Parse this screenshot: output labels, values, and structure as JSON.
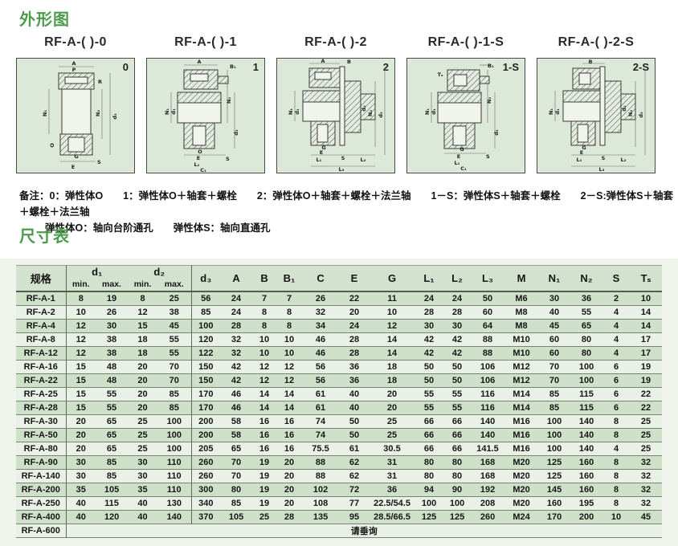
{
  "page": {
    "section1_title": "外形图",
    "section2_title": "尺寸表"
  },
  "diagrams": [
    {
      "title": "RF-A-( )-0",
      "corner": "0",
      "dims": [
        "A",
        "P",
        "R",
        "N₁",
        "N₂",
        "d₃",
        "O",
        "G",
        "E",
        "S"
      ]
    },
    {
      "title": "RF-A-( )-1",
      "corner": "1",
      "dims": [
        "A",
        "B₁",
        "N₁",
        "d₁",
        "N₂",
        "d₃",
        "O",
        "E",
        "L₁",
        "C₁",
        "S"
      ]
    },
    {
      "title": "RF-A-( )-2",
      "corner": "2",
      "dims": [
        "A",
        "B",
        "N₁",
        "d₁",
        "d₂",
        "N₂",
        "d₃",
        "G",
        "E",
        "L₁",
        "S",
        "L₂",
        "L₃"
      ]
    },
    {
      "title": "RF-A-( )-1-S",
      "corner": "1-S",
      "dims": [
        "B₁",
        "Tₛ",
        "N₁",
        "d₁",
        "N₂",
        "d₃",
        "G",
        "E",
        "L₁",
        "C₁",
        "S"
      ]
    },
    {
      "title": "RF-A-( )-2-S",
      "corner": "2-S",
      "dims": [
        "B",
        "N₁",
        "d₁",
        "d₂",
        "N₂",
        "d₃",
        "G",
        "E",
        "S",
        "L₁",
        "L₂",
        "L₃"
      ]
    }
  ],
  "notes": {
    "line1": "备注：0：弹性体O　　1：弹性体O＋轴套＋螺栓　　2：弹性体O＋轴套＋螺栓＋法兰轴　　1－S：弹性体S＋轴套＋螺栓　　2－S:弹性体S＋轴套＋螺栓＋法兰轴",
    "line2": "弹性体O：轴向台阶通孔　　弹性体S：轴向直通孔"
  },
  "table": {
    "headers": {
      "spec": "规格",
      "d1": "d₁",
      "d2": "d₂",
      "min": "min.",
      "max": "max.",
      "cols": [
        "d₃",
        "A",
        "B",
        "B₁",
        "C",
        "E",
        "G",
        "L₁",
        "L₂",
        "L₃",
        "M",
        "N₁",
        "N₂",
        "S",
        "Tₛ"
      ]
    },
    "rows": [
      {
        "spec": "RF-A-1",
        "values": [
          "8",
          "19",
          "8",
          "25",
          "56",
          "24",
          "7",
          "7",
          "26",
          "22",
          "11",
          "24",
          "24",
          "50",
          "M6",
          "30",
          "36",
          "2",
          "10"
        ]
      },
      {
        "spec": "RF-A-2",
        "values": [
          "10",
          "26",
          "12",
          "38",
          "85",
          "24",
          "8",
          "8",
          "32",
          "20",
          "10",
          "28",
          "28",
          "60",
          "M8",
          "40",
          "55",
          "4",
          "14"
        ]
      },
      {
        "spec": "RF-A-4",
        "values": [
          "12",
          "30",
          "15",
          "45",
          "100",
          "28",
          "8",
          "8",
          "34",
          "24",
          "12",
          "30",
          "30",
          "64",
          "M8",
          "45",
          "65",
          "4",
          "14"
        ]
      },
      {
        "spec": "RF-A-8",
        "values": [
          "12",
          "38",
          "18",
          "55",
          "120",
          "32",
          "10",
          "10",
          "46",
          "28",
          "14",
          "42",
          "42",
          "88",
          "M10",
          "60",
          "80",
          "4",
          "17"
        ]
      },
      {
        "spec": "RF-A-12",
        "values": [
          "12",
          "38",
          "18",
          "55",
          "122",
          "32",
          "10",
          "10",
          "46",
          "28",
          "14",
          "42",
          "42",
          "88",
          "M10",
          "60",
          "80",
          "4",
          "17"
        ]
      },
      {
        "spec": "RF-A-16",
        "values": [
          "15",
          "48",
          "20",
          "70",
          "150",
          "42",
          "12",
          "12",
          "56",
          "36",
          "18",
          "50",
          "50",
          "106",
          "M12",
          "70",
          "100",
          "6",
          "19"
        ]
      },
      {
        "spec": "RF-A-22",
        "values": [
          "15",
          "48",
          "20",
          "70",
          "150",
          "42",
          "12",
          "12",
          "56",
          "36",
          "18",
          "50",
          "50",
          "106",
          "M12",
          "70",
          "100",
          "6",
          "19"
        ]
      },
      {
        "spec": "RF-A-25",
        "values": [
          "15",
          "55",
          "20",
          "85",
          "170",
          "46",
          "14",
          "14",
          "61",
          "40",
          "20",
          "55",
          "55",
          "116",
          "M14",
          "85",
          "115",
          "6",
          "22"
        ]
      },
      {
        "spec": "RF-A-28",
        "values": [
          "15",
          "55",
          "20",
          "85",
          "170",
          "46",
          "14",
          "14",
          "61",
          "40",
          "20",
          "55",
          "55",
          "116",
          "M14",
          "85",
          "115",
          "6",
          "22"
        ]
      },
      {
        "spec": "RF-A-30",
        "values": [
          "20",
          "65",
          "25",
          "100",
          "200",
          "58",
          "16",
          "16",
          "74",
          "50",
          "25",
          "66",
          "66",
          "140",
          "M16",
          "100",
          "140",
          "8",
          "25"
        ]
      },
      {
        "spec": "RF-A-50",
        "values": [
          "20",
          "65",
          "25",
          "100",
          "200",
          "58",
          "16",
          "16",
          "74",
          "50",
          "25",
          "66",
          "66",
          "140",
          "M16",
          "100",
          "140",
          "8",
          "25"
        ]
      },
      {
        "spec": "RF-A-80",
        "values": [
          "20",
          "65",
          "25",
          "100",
          "205",
          "65",
          "16",
          "16",
          "75.5",
          "61",
          "30.5",
          "66",
          "66",
          "141.5",
          "M16",
          "100",
          "140",
          "4",
          "25"
        ]
      },
      {
        "spec": "RF-A-90",
        "values": [
          "30",
          "85",
          "30",
          "110",
          "260",
          "70",
          "19",
          "20",
          "88",
          "62",
          "31",
          "80",
          "80",
          "168",
          "M20",
          "125",
          "160",
          "8",
          "32"
        ]
      },
      {
        "spec": "RF-A-140",
        "values": [
          "30",
          "85",
          "30",
          "110",
          "260",
          "70",
          "19",
          "20",
          "88",
          "62",
          "31",
          "80",
          "80",
          "168",
          "M20",
          "125",
          "160",
          "8",
          "32"
        ]
      },
      {
        "spec": "RF-A-200",
        "values": [
          "35",
          "105",
          "35",
          "110",
          "300",
          "80",
          "19",
          "20",
          "102",
          "72",
          "36",
          "94",
          "90",
          "192",
          "M20",
          "145",
          "160",
          "8",
          "32"
        ]
      },
      {
        "spec": "RF-A-250",
        "values": [
          "40",
          "115",
          "40",
          "130",
          "340",
          "85",
          "19",
          "20",
          "108",
          "77",
          "22.5/54.5",
          "100",
          "100",
          "208",
          "M20",
          "160",
          "195",
          "8",
          "32"
        ]
      },
      {
        "spec": "RF-A-400",
        "values": [
          "40",
          "120",
          "40",
          "140",
          "370",
          "105",
          "25",
          "28",
          "135",
          "95",
          "28.5/66.5",
          "125",
          "125",
          "260",
          "M24",
          "170",
          "200",
          "10",
          "45"
        ]
      }
    ],
    "last_row": {
      "spec": "RF-A-600",
      "note": "请垂询"
    }
  }
}
